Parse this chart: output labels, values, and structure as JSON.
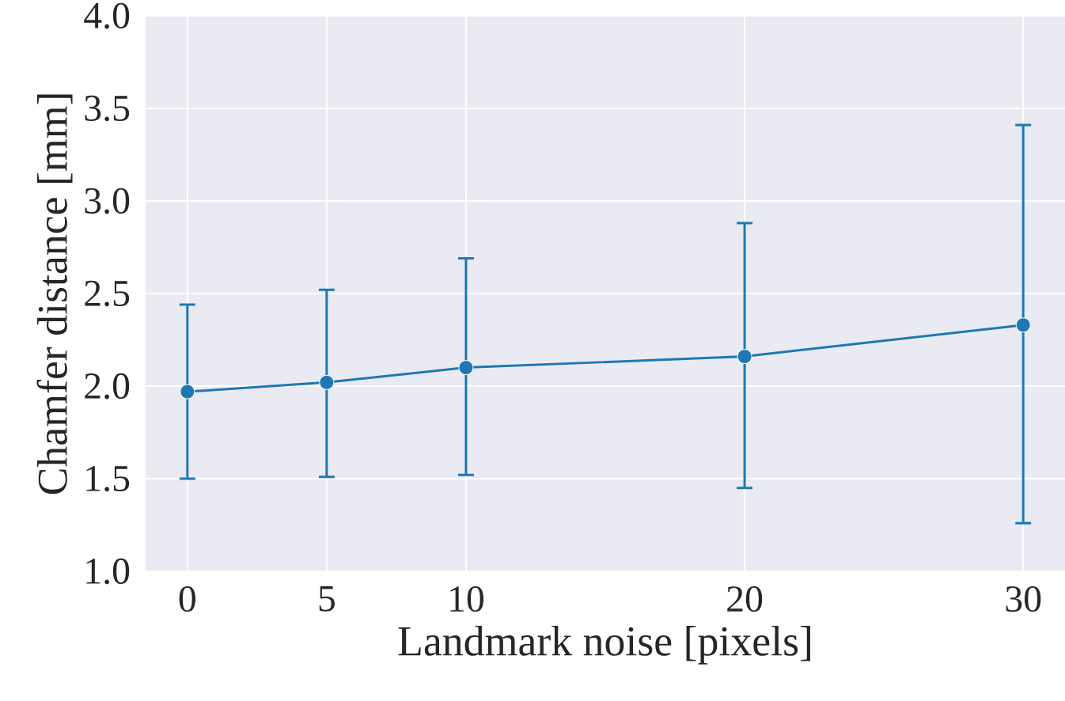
{
  "chart_data": {
    "type": "line",
    "xlabel": "Landmark noise [pixels]",
    "ylabel": "Chamfer distance [mm]",
    "x": [
      0,
      5,
      10,
      20,
      30
    ],
    "series": [
      {
        "color": "#1f77b4",
        "values": [
          1.97,
          2.02,
          2.1,
          2.16,
          2.33
        ],
        "errors": [
          [
            1.5,
            2.44
          ],
          [
            1.51,
            2.52
          ],
          [
            1.52,
            2.69
          ],
          [
            1.45,
            2.88
          ],
          [
            1.26,
            3.41
          ]
        ]
      }
    ],
    "xlim": [
      -1.5,
      31.5
    ],
    "ylim": [
      1.0,
      4.0
    ],
    "xticks": [
      0,
      5,
      10,
      20,
      30
    ],
    "yticks": [
      {
        "value": 1.0,
        "label": "1.0"
      },
      {
        "value": 1.5,
        "label": "1.5"
      },
      {
        "value": 2.0,
        "label": "2.0"
      },
      {
        "value": 2.5,
        "label": "2.5"
      },
      {
        "value": 3.0,
        "label": "3.0"
      },
      {
        "value": 3.5,
        "label": "3.5"
      },
      {
        "value": 4.0,
        "label": "4.0"
      }
    ],
    "grid": true,
    "marker": "circle",
    "line_style": "solid"
  }
}
